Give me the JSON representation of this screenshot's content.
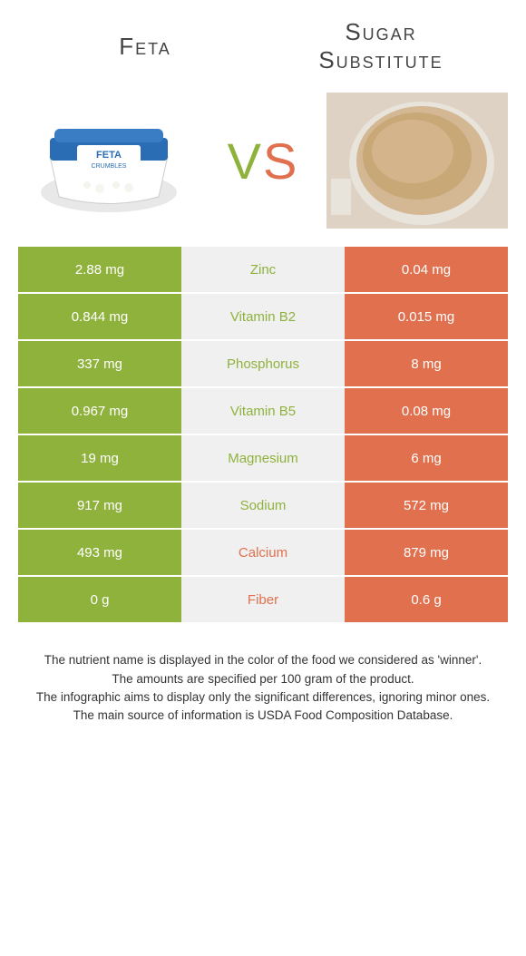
{
  "titles": {
    "left": "Feta",
    "right_line1": "Sugar",
    "right_line2": "Substitute"
  },
  "vs": {
    "v": "V",
    "s": "S"
  },
  "colors": {
    "green": "#8fb23d",
    "orange": "#e0704e",
    "mid_bg": "#f0f0f0"
  },
  "rows": [
    {
      "left": "2.88 mg",
      "nutrient": "Zinc",
      "right": "0.04 mg",
      "winner": "left"
    },
    {
      "left": "0.844 mg",
      "nutrient": "Vitamin B2",
      "right": "0.015 mg",
      "winner": "left"
    },
    {
      "left": "337 mg",
      "nutrient": "Phosphorus",
      "right": "8 mg",
      "winner": "left"
    },
    {
      "left": "0.967 mg",
      "nutrient": "Vitamin B5",
      "right": "0.08 mg",
      "winner": "left"
    },
    {
      "left": "19 mg",
      "nutrient": "Magnesium",
      "right": "6 mg",
      "winner": "left"
    },
    {
      "left": "917 mg",
      "nutrient": "Sodium",
      "right": "572 mg",
      "winner": "left"
    },
    {
      "left": "493 mg",
      "nutrient": "Calcium",
      "right": "879 mg",
      "winner": "right"
    },
    {
      "left": "0 g",
      "nutrient": "Fiber",
      "right": "0.6 g",
      "winner": "right"
    }
  ],
  "footnotes": {
    "line1": "The nutrient name is displayed in the color of the food we considered as 'winner'.",
    "line2": "The amounts are specified per 100 gram of the product.",
    "line3": "The infographic aims to display only the significant differences, ignoring minor ones.",
    "line4": "The main source of information is USDA Food Composition Database."
  }
}
